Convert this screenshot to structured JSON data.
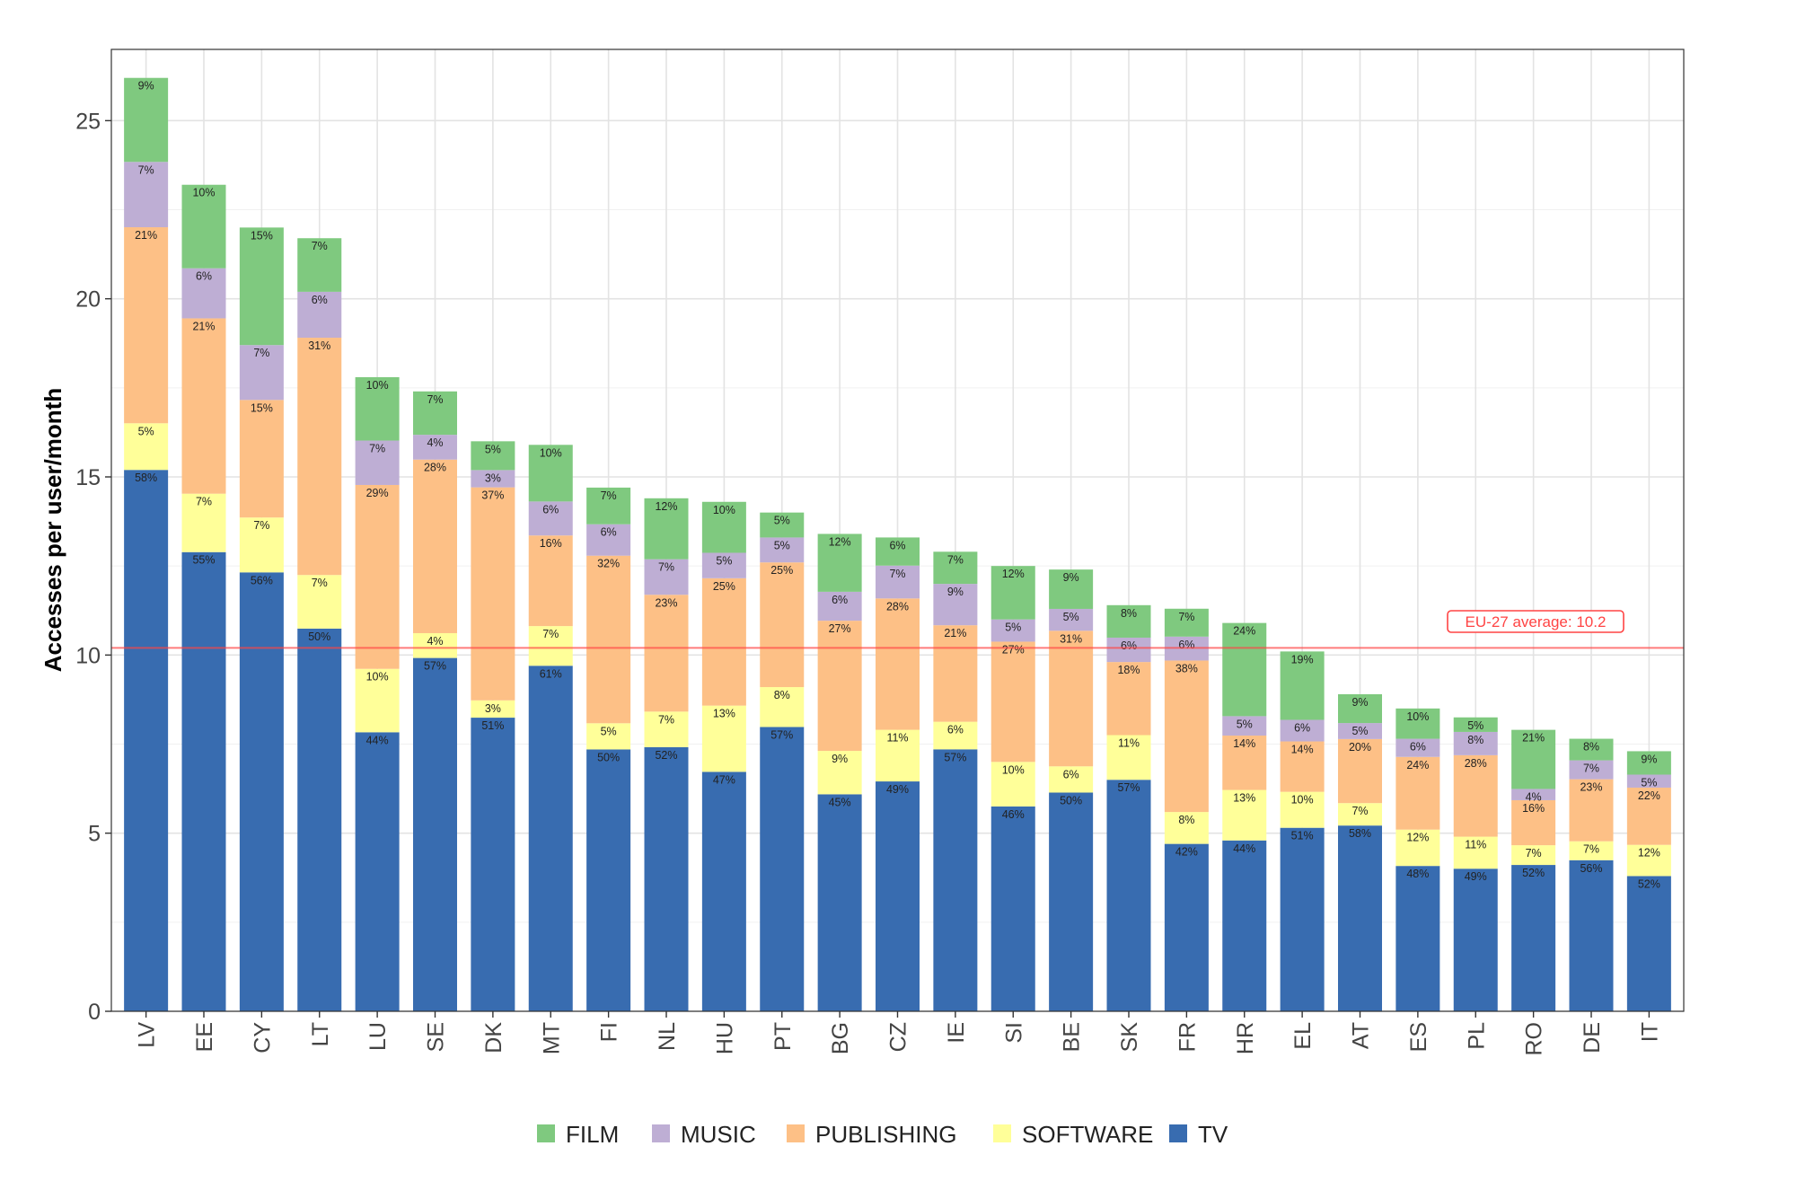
{
  "chart_data": {
    "type": "bar",
    "stacked": true,
    "title": "",
    "xlabel": "",
    "ylabel": "Accesses per user/month",
    "ylim": [
      0,
      27
    ],
    "yticks": [
      0,
      5,
      10,
      15,
      20,
      25
    ],
    "grid": true,
    "legend_position": "bottom",
    "categories": [
      "LV",
      "EE",
      "CY",
      "LT",
      "LU",
      "SE",
      "DK",
      "MT",
      "FI",
      "NL",
      "HU",
      "PT",
      "BG",
      "CZ",
      "IE",
      "SI",
      "BE",
      "SK",
      "FR",
      "HR",
      "EL",
      "AT",
      "ES",
      "PL",
      "RO",
      "DE",
      "IT"
    ],
    "totals": [
      26.2,
      23.2,
      22.0,
      21.7,
      17.8,
      17.4,
      16.0,
      15.9,
      14.7,
      14.4,
      14.3,
      14.0,
      13.4,
      13.3,
      12.9,
      12.5,
      12.4,
      11.4,
      11.3,
      10.9,
      10.1,
      8.9,
      8.5,
      8.25,
      7.9,
      7.65,
      7.3
    ],
    "series": [
      {
        "name": "TV",
        "color": "#386cb0",
        "percent": [
          58,
          55,
          56,
          50,
          44,
          57,
          51,
          61,
          50,
          52,
          47,
          57,
          45,
          49,
          57,
          46,
          50,
          57,
          42,
          44,
          51,
          58,
          48,
          49,
          52,
          56,
          52
        ]
      },
      {
        "name": "SOFTWARE",
        "color": "#ffff99",
        "percent": [
          5,
          7,
          7,
          7,
          10,
          4,
          3,
          7,
          5,
          7,
          13,
          8,
          9,
          11,
          6,
          10,
          6,
          11,
          8,
          13,
          10,
          7,
          12,
          11,
          7,
          7,
          12
        ]
      },
      {
        "name": "PUBLISHING",
        "color": "#fdc086",
        "percent": [
          21,
          21,
          15,
          31,
          29,
          28,
          37,
          16,
          32,
          23,
          25,
          25,
          27,
          28,
          21,
          27,
          31,
          18,
          38,
          14,
          14,
          20,
          24,
          28,
          16,
          23,
          22
        ]
      },
      {
        "name": "MUSIC",
        "color": "#beaed4",
        "percent": [
          7,
          6,
          7,
          6,
          7,
          4,
          3,
          6,
          6,
          7,
          5,
          5,
          6,
          7,
          9,
          5,
          5,
          6,
          6,
          5,
          6,
          5,
          6,
          8,
          4,
          7,
          5
        ]
      },
      {
        "name": "FILM",
        "color": "#7fc97f",
        "percent": [
          9,
          10,
          15,
          7,
          10,
          7,
          5,
          10,
          7,
          12,
          10,
          5,
          12,
          6,
          7,
          12,
          9,
          8,
          7,
          24,
          19,
          9,
          10,
          5,
          21,
          8,
          9
        ]
      }
    ],
    "legend_order": [
      "FILM",
      "MUSIC",
      "PUBLISHING",
      "SOFTWARE",
      "TV"
    ],
    "reference_line": {
      "value": 10.2,
      "label": "EU-27 average: 10.2",
      "color": "#ff4444"
    }
  }
}
